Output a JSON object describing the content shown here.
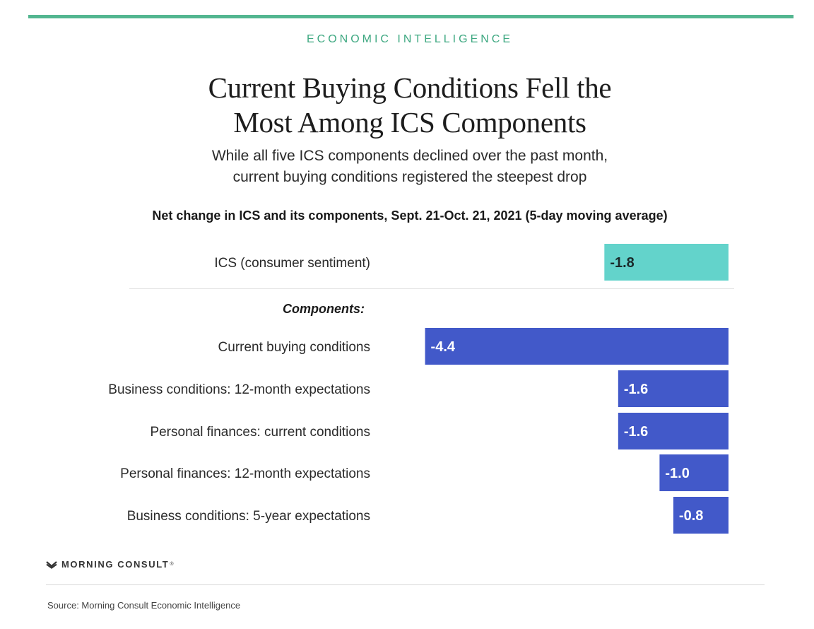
{
  "header": {
    "kicker": "ECONOMIC INTELLIGENCE",
    "title_line1": "Current Buying Conditions Fell the",
    "title_line2": "Most Among ICS Components",
    "subtitle_line1": "While all five ICS components declined over the past month,",
    "subtitle_line2": "current buying conditions registered the steepest drop"
  },
  "colors": {
    "accent_rule": "#53b690",
    "kicker": "#3ea881",
    "ics_bar": "#63d3cb",
    "component_bar": "#4259c9",
    "ics_value_text": "#1a2a2a",
    "component_value_text": "#ffffff"
  },
  "chart_data": {
    "type": "bar",
    "orientation": "horizontal",
    "title": "Net change in ICS and its components, Sept. 21-Oct. 21, 2021 (5-day moving average)",
    "group_label": "Components:",
    "categories": [
      "ICS (consumer sentiment)",
      "Current buying conditions",
      "Business conditions: 12-month expectations",
      "Personal finances: current conditions",
      "Personal finances: 12-month expectations",
      "Business conditions: 5-year expectations"
    ],
    "values": [
      -1.8,
      -4.4,
      -1.6,
      -1.6,
      -1.0,
      -0.8
    ],
    "value_labels": [
      "-1.8",
      "-4.4",
      "-1.6",
      "-1.6",
      "-1.0",
      "-0.8"
    ],
    "xlim": [
      -4.4,
      0
    ],
    "grid": false,
    "legend": "none"
  },
  "footer": {
    "logo_text": "MORNING CONSULT",
    "logo_mark": "®",
    "source": "Source: Morning Consult Economic Intelligence"
  }
}
